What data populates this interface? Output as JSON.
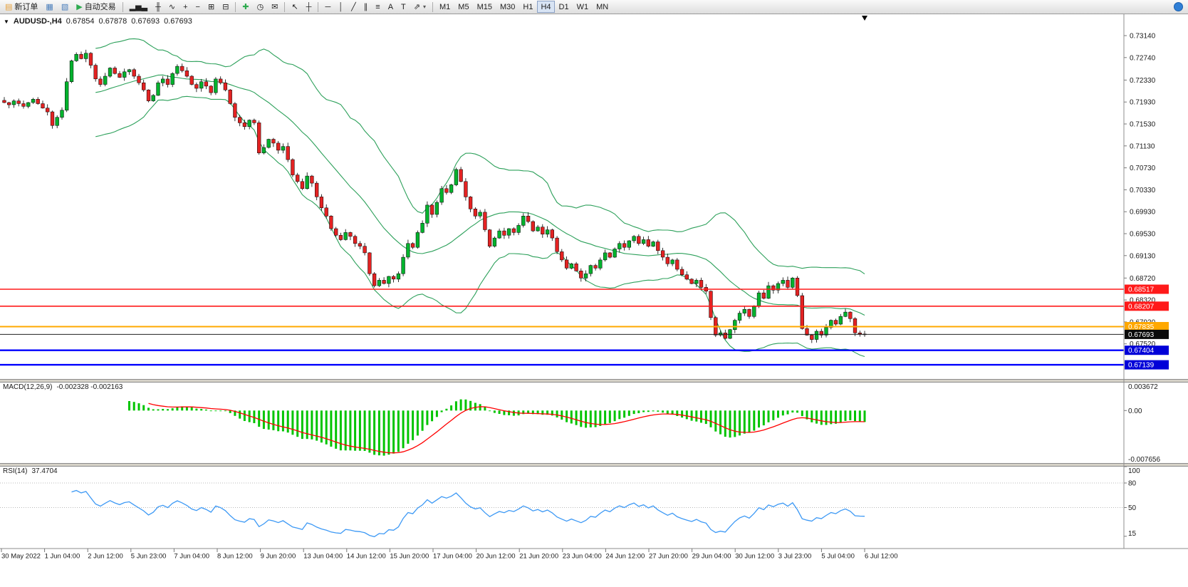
{
  "toolbar": {
    "groups": [
      {
        "items": [
          {
            "name": "new-order-button",
            "glyph": "▤",
            "glyph_color": "#e8a33d",
            "label": "新订单"
          },
          {
            "name": "chart-window-button",
            "glyph": "▦",
            "glyph_color": "#4a7ebb"
          },
          {
            "name": "profiles-button",
            "glyph": "▧",
            "glyph_color": "#4a7ebb"
          },
          {
            "name": "auto-trading-button",
            "glyph": "▶",
            "glyph_color": "#2eab4f",
            "label": "自动交易"
          }
        ]
      },
      {
        "items": [
          {
            "name": "bar-chart-button",
            "glyph": "▂▅▃"
          },
          {
            "name": "candlestick-chart-button",
            "glyph": "╫"
          },
          {
            "name": "line-chart-button",
            "glyph": "∿"
          },
          {
            "name": "zoom-in-button",
            "glyph": "+"
          },
          {
            "name": "zoom-out-button",
            "glyph": "−"
          },
          {
            "name": "tile-windows-button",
            "glyph": "⊞"
          },
          {
            "name": "cascade-windows-button",
            "glyph": "⊟"
          }
        ]
      },
      {
        "items": [
          {
            "name": "indicators-button",
            "glyph": "✚",
            "glyph_color": "#2eab4f"
          },
          {
            "name": "periods-button",
            "glyph": "◷"
          },
          {
            "name": "templates-button",
            "glyph": "✉"
          }
        ]
      },
      {
        "items": [
          {
            "name": "cursor-button",
            "glyph": "↖"
          },
          {
            "name": "crosshair-button",
            "glyph": "┼"
          }
        ]
      },
      {
        "items": [
          {
            "name": "horizontal-line-button",
            "glyph": "─"
          },
          {
            "name": "vertical-line-button",
            "glyph": "│"
          },
          {
            "name": "trendline-button",
            "glyph": "╱"
          },
          {
            "name": "channel-button",
            "glyph": "∥"
          },
          {
            "name": "fibonacci-button",
            "glyph": "≡"
          },
          {
            "name": "text-button",
            "glyph": "A"
          },
          {
            "name": "text-label-button",
            "glyph": "T"
          },
          {
            "name": "arrows-button",
            "glyph": "⇗",
            "dropdown": true
          }
        ]
      },
      {
        "items": [
          {
            "name": "timeframe-m1",
            "label": "M1"
          },
          {
            "name": "timeframe-m5",
            "label": "M5"
          },
          {
            "name": "timeframe-m15",
            "label": "M15"
          },
          {
            "name": "timeframe-m30",
            "label": "M30"
          },
          {
            "name": "timeframe-h1",
            "label": "H1"
          },
          {
            "name": "timeframe-h4",
            "label": "H4",
            "active": true
          },
          {
            "name": "timeframe-d1",
            "label": "D1"
          },
          {
            "name": "timeframe-w1",
            "label": "W1"
          },
          {
            "name": "timeframe-mn",
            "label": "MN"
          }
        ]
      }
    ],
    "right_items": [
      {
        "name": "search-icon"
      }
    ]
  },
  "chart": {
    "symbol_line": {
      "symbol": "AUDUSD-,H4",
      "open": "0.67854",
      "high": "0.67878",
      "low": "0.67693",
      "close": "0.67693"
    },
    "price_axis_labels": [
      "0.73140",
      "0.72740",
      "0.72330",
      "0.71930",
      "0.71530",
      "0.71130",
      "0.70730",
      "0.70330",
      "0.69930",
      "0.69530",
      "0.69130",
      "0.68720",
      "0.68320",
      "0.67920",
      "0.67520"
    ],
    "hlines": [
      {
        "value": 0.68517,
        "label": "0.68517",
        "color": "#ff1a1a",
        "label_bg": "#ff1a1a",
        "width": 1.6
      },
      {
        "value": 0.68207,
        "label": "0.68207",
        "color": "#ff1a1a",
        "label_bg": "#ff1a1a",
        "width": 1.6
      },
      {
        "value": 0.67835,
        "label": "0.67835",
        "color": "#ffa800",
        "label_bg": "#ffa800",
        "width": 2
      },
      {
        "value": 0.67693,
        "label": "0.67693",
        "color": "#202020",
        "label_bg": "#0a0a0a",
        "width": 1
      },
      {
        "value": 0.67404,
        "label": "0.67404",
        "color": "#0000ff",
        "label_bg": "#0000d8",
        "width": 2.4
      },
      {
        "value": 0.67139,
        "label": "0.67139",
        "color": "#0000ff",
        "label_bg": "#0000d8",
        "width": 2.4
      }
    ],
    "colors": {
      "bull": "#00b22d",
      "bear": "#e32222",
      "outline": "#000000",
      "band": "#2ca05a",
      "macd_hist": "#00c400",
      "macd_signal": "#ff0000",
      "rsi": "#3d99f5",
      "axis_text": "#1a1a1a"
    }
  },
  "chart_data": {
    "type": "candlestick",
    "symbol": "AUDUSD",
    "timeframe": "H4",
    "indicators": [
      {
        "name": "Bollinger Bands",
        "period": 20,
        "deviation": 2
      },
      {
        "name": "MACD",
        "params": [
          12,
          26,
          9
        ],
        "shown_values": "-0.002328 -0.002163"
      },
      {
        "name": "RSI",
        "period": 14,
        "shown_value": "37.4704"
      }
    ],
    "closes": [
      0.7192,
      0.7188,
      0.7195,
      0.719,
      0.7185,
      0.7192,
      0.7198,
      0.719,
      0.7182,
      0.7175,
      0.715,
      0.7165,
      0.7178,
      0.723,
      0.7268,
      0.728,
      0.7272,
      0.7282,
      0.726,
      0.7235,
      0.7225,
      0.724,
      0.7255,
      0.7245,
      0.7238,
      0.7248,
      0.7252,
      0.724,
      0.7228,
      0.7215,
      0.7195,
      0.7205,
      0.7228,
      0.7235,
      0.7225,
      0.7245,
      0.7258,
      0.725,
      0.724,
      0.7225,
      0.7218,
      0.723,
      0.7222,
      0.721,
      0.7235,
      0.7228,
      0.7215,
      0.719,
      0.7165,
      0.7155,
      0.7148,
      0.716,
      0.7155,
      0.71,
      0.711,
      0.7125,
      0.7118,
      0.7105,
      0.7112,
      0.7088,
      0.706,
      0.7048,
      0.7035,
      0.7058,
      0.7045,
      0.702,
      0.7,
      0.6985,
      0.6962,
      0.695,
      0.6942,
      0.6955,
      0.6948,
      0.6935,
      0.693,
      0.6918,
      0.688,
      0.6858,
      0.6868,
      0.6862,
      0.6875,
      0.687,
      0.688,
      0.691,
      0.6935,
      0.6928,
      0.6955,
      0.6972,
      0.7005,
      0.6988,
      0.701,
      0.7035,
      0.7028,
      0.7042,
      0.707,
      0.7048,
      0.702,
      0.6998,
      0.6985,
      0.6992,
      0.696,
      0.693,
      0.6945,
      0.6958,
      0.695,
      0.6962,
      0.6955,
      0.6968,
      0.6985,
      0.6975,
      0.6958,
      0.6965,
      0.6952,
      0.696,
      0.6945,
      0.692,
      0.6905,
      0.689,
      0.6898,
      0.6885,
      0.6872,
      0.688,
      0.6895,
      0.689,
      0.6905,
      0.6918,
      0.691,
      0.6925,
      0.6935,
      0.6928,
      0.694,
      0.6948,
      0.6935,
      0.6942,
      0.693,
      0.6938,
      0.6922,
      0.691,
      0.6898,
      0.6905,
      0.6888,
      0.6878,
      0.687,
      0.6862,
      0.6868,
      0.6855,
      0.6848,
      0.68,
      0.6768,
      0.6772,
      0.6762,
      0.6778,
      0.6795,
      0.6808,
      0.6815,
      0.6802,
      0.682,
      0.6845,
      0.6835,
      0.6858,
      0.685,
      0.6862,
      0.6868,
      0.6855,
      0.6872,
      0.684,
      0.678,
      0.6768,
      0.676,
      0.6775,
      0.6768,
      0.6782,
      0.6795,
      0.6788,
      0.6802,
      0.681,
      0.6798,
      0.6772,
      0.677,
      0.6769
    ]
  },
  "macd_panel": {
    "label": "MACD(12,26,9)",
    "values": "-0.002328 -0.002163",
    "axis_top": "0.003672",
    "axis_zero": "0.00",
    "axis_bottom": "-0.007656"
  },
  "rsi_panel": {
    "label": "RSI(14)",
    "value": "37.4704",
    "levels": [
      80,
      50
    ],
    "axis_labels": [
      {
        "text": "100",
        "value": 100
      },
      {
        "text": "80",
        "value": 80
      },
      {
        "text": "50",
        "value": 50
      },
      {
        "text": "15",
        "value": 15
      }
    ]
  },
  "time_axis": {
    "labels": [
      "30 May 2022",
      "1 Jun 04:00",
      "2 Jun 12:00",
      "5 Jun 23:00",
      "7 Jun 04:00",
      "8 Jun 12:00",
      "9 Jun 20:00",
      "13 Jun 04:00",
      "14 Jun 12:00",
      "15 Jun 20:00",
      "17 Jun 04:00",
      "20 Jun 12:00",
      "21 Jun 20:00",
      "23 Jun 04:00",
      "24 Jun 12:00",
      "27 Jun 20:00",
      "29 Jun 04:00",
      "30 Jun 12:00",
      "3 Jul 23:00",
      "5 Jul 04:00",
      "6 Jul 12:00"
    ]
  }
}
